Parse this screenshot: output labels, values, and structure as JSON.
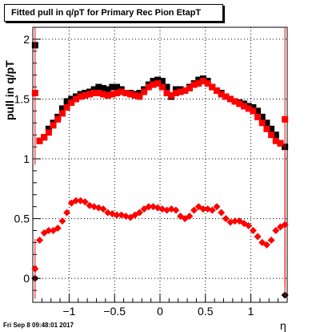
{
  "title": "Fitted pull in q/pT for Primary Rec Pion EtapT",
  "xlabel": "η",
  "ylabel": "pull in q/pT",
  "timestamp": "Fri Sep  8 09:48:01 2017",
  "chart_data": {
    "type": "scatter",
    "xlim": [
      -1.4,
      1.4
    ],
    "ylim": [
      -0.2,
      2.1
    ],
    "grid": true,
    "x_ticks": [
      -1,
      -0.5,
      0,
      0.5,
      1
    ],
    "x_tick_labels": [
      "−1",
      "−0.5",
      "0",
      "0.5",
      "1"
    ],
    "y_ticks": [
      0,
      0.5,
      1,
      1.5,
      2
    ],
    "y_tick_labels": [
      "0",
      "0.5",
      "1",
      "1.5",
      "2"
    ],
    "series": [
      {
        "color": "#000000",
        "marker": "square",
        "x": [
          -1.375,
          -1.325,
          -1.275,
          -1.225,
          -1.175,
          -1.125,
          -1.075,
          -1.025,
          -0.975,
          -0.925,
          -0.875,
          -0.825,
          -0.775,
          -0.725,
          -0.675,
          -0.625,
          -0.575,
          -0.525,
          -0.475,
          -0.425,
          -0.375,
          -0.325,
          -0.275,
          -0.225,
          -0.175,
          -0.125,
          -0.075,
          -0.025,
          0.025,
          0.075,
          0.125,
          0.175,
          0.225,
          0.275,
          0.325,
          0.375,
          0.425,
          0.475,
          0.525,
          0.575,
          0.625,
          0.675,
          0.725,
          0.775,
          0.825,
          0.875,
          0.925,
          0.975,
          1.025,
          1.075,
          1.125,
          1.175,
          1.225,
          1.275,
          1.325,
          1.375
        ],
        "y": [
          1.95,
          1.15,
          1.18,
          1.25,
          1.3,
          1.35,
          1.42,
          1.48,
          1.5,
          1.52,
          1.54,
          1.55,
          1.56,
          1.58,
          1.6,
          1.59,
          1.58,
          1.6,
          1.6,
          1.58,
          1.55,
          1.55,
          1.54,
          1.55,
          1.58,
          1.62,
          1.65,
          1.66,
          1.65,
          1.6,
          1.52,
          1.58,
          1.58,
          1.57,
          1.6,
          1.63,
          1.66,
          1.67,
          1.65,
          1.6,
          1.57,
          1.55,
          1.52,
          1.5,
          1.48,
          1.47,
          1.46,
          1.44,
          1.43,
          1.4,
          1.35,
          1.3,
          1.25,
          1.2,
          1.13,
          1.1
        ]
      },
      {
        "color": "#ff0000",
        "marker": "square",
        "x": [
          -1.375,
          -1.325,
          -1.275,
          -1.225,
          -1.175,
          -1.125,
          -1.075,
          -1.025,
          -0.975,
          -0.925,
          -0.875,
          -0.825,
          -0.775,
          -0.725,
          -0.675,
          -0.625,
          -0.575,
          -0.525,
          -0.475,
          -0.425,
          -0.375,
          -0.325,
          -0.275,
          -0.225,
          -0.175,
          -0.125,
          -0.075,
          -0.025,
          0.025,
          0.075,
          0.125,
          0.175,
          0.225,
          0.275,
          0.325,
          0.375,
          0.425,
          0.475,
          0.525,
          0.575,
          0.625,
          0.675,
          0.725,
          0.775,
          0.825,
          0.875,
          0.925,
          0.975,
          1.025,
          1.075,
          1.125,
          1.175,
          1.225,
          1.275,
          1.325,
          1.375
        ],
        "y": [
          1.55,
          1.15,
          1.18,
          1.22,
          1.28,
          1.33,
          1.38,
          1.43,
          1.47,
          1.5,
          1.52,
          1.53,
          1.54,
          1.55,
          1.55,
          1.54,
          1.53,
          1.54,
          1.55,
          1.56,
          1.55,
          1.54,
          1.53,
          1.52,
          1.56,
          1.6,
          1.62,
          1.63,
          1.6,
          1.55,
          1.53,
          1.55,
          1.56,
          1.57,
          1.59,
          1.62,
          1.63,
          1.65,
          1.63,
          1.6,
          1.57,
          1.54,
          1.52,
          1.5,
          1.48,
          1.46,
          1.44,
          1.42,
          1.4,
          1.35,
          1.3,
          1.25,
          1.2,
          1.15,
          1.13,
          1.33
        ]
      },
      {
        "color": "#ff0000",
        "marker": "diamond",
        "x": [
          -1.375,
          -1.325,
          -1.275,
          -1.225,
          -1.175,
          -1.125,
          -1.075,
          -1.025,
          -0.975,
          -0.925,
          -0.875,
          -0.825,
          -0.775,
          -0.725,
          -0.675,
          -0.625,
          -0.575,
          -0.525,
          -0.475,
          -0.425,
          -0.375,
          -0.325,
          -0.275,
          -0.225,
          -0.175,
          -0.125,
          -0.075,
          -0.025,
          0.025,
          0.075,
          0.125,
          0.175,
          0.225,
          0.275,
          0.325,
          0.375,
          0.425,
          0.475,
          0.525,
          0.575,
          0.625,
          0.675,
          0.725,
          0.775,
          0.825,
          0.875,
          0.925,
          0.975,
          1.025,
          1.075,
          1.125,
          1.175,
          1.225,
          1.275,
          1.325,
          1.375
        ],
        "y": [
          0.08,
          0.32,
          0.38,
          0.4,
          0.4,
          0.42,
          0.48,
          0.55,
          0.63,
          0.65,
          0.65,
          0.64,
          0.61,
          0.6,
          0.59,
          0.58,
          0.55,
          0.54,
          0.53,
          0.53,
          0.52,
          0.51,
          0.53,
          0.55,
          0.58,
          0.6,
          0.6,
          0.59,
          0.58,
          0.57,
          0.58,
          0.57,
          0.52,
          0.5,
          0.52,
          0.57,
          0.6,
          0.58,
          0.58,
          0.57,
          0.6,
          0.55,
          0.5,
          0.47,
          0.48,
          0.48,
          0.46,
          0.44,
          0.4,
          0.35,
          0.3,
          0.28,
          0.32,
          0.4,
          0.43,
          0.45
        ]
      },
      {
        "color": "#000000",
        "marker": "diamond",
        "x": [
          -1.375,
          1.375
        ],
        "y": [
          0.0,
          -0.14
        ]
      }
    ]
  }
}
